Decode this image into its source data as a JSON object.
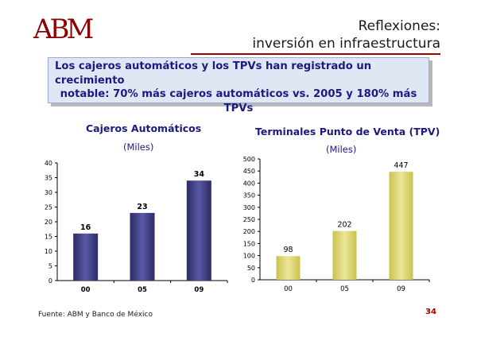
{
  "header": {
    "logo_text": "ABM",
    "title_line1": "Reflexiones:",
    "title_line2": "inversión en infraestructura"
  },
  "callout": {
    "line1": "Los cajeros automáticos y los TPVs han registrado un crecimiento",
    "line2": "notable: 70% más cajeros automáticos vs. 2005 y 180% más",
    "line3": "TPVs"
  },
  "chart_data": [
    {
      "type": "bar",
      "title": "Cajeros Automáticos",
      "subtitle": "(Miles)",
      "categories": [
        "00",
        "05",
        "09"
      ],
      "values": [
        16,
        23,
        34
      ],
      "data_labels": [
        "16",
        "23",
        "34"
      ],
      "ylim": [
        0,
        40
      ],
      "yticks": [
        0,
        5,
        10,
        15,
        20,
        25,
        30,
        35,
        40
      ],
      "bar_color": "#3b3a7a",
      "grid": false
    },
    {
      "type": "bar",
      "title": "Terminales Punto de Venta (TPV)",
      "subtitle": "(Miles)",
      "categories": [
        "00",
        "05",
        "09"
      ],
      "values": [
        98,
        202,
        447
      ],
      "data_labels": [
        "98",
        "202",
        "447"
      ],
      "ylim": [
        0,
        500
      ],
      "yticks": [
        0,
        50,
        100,
        150,
        200,
        250,
        300,
        350,
        400,
        450,
        500
      ],
      "bar_color": "#d8d27a",
      "grid": false
    }
  ],
  "footer": {
    "source": "Fuente: ABM y Banco de México",
    "page": "34"
  }
}
